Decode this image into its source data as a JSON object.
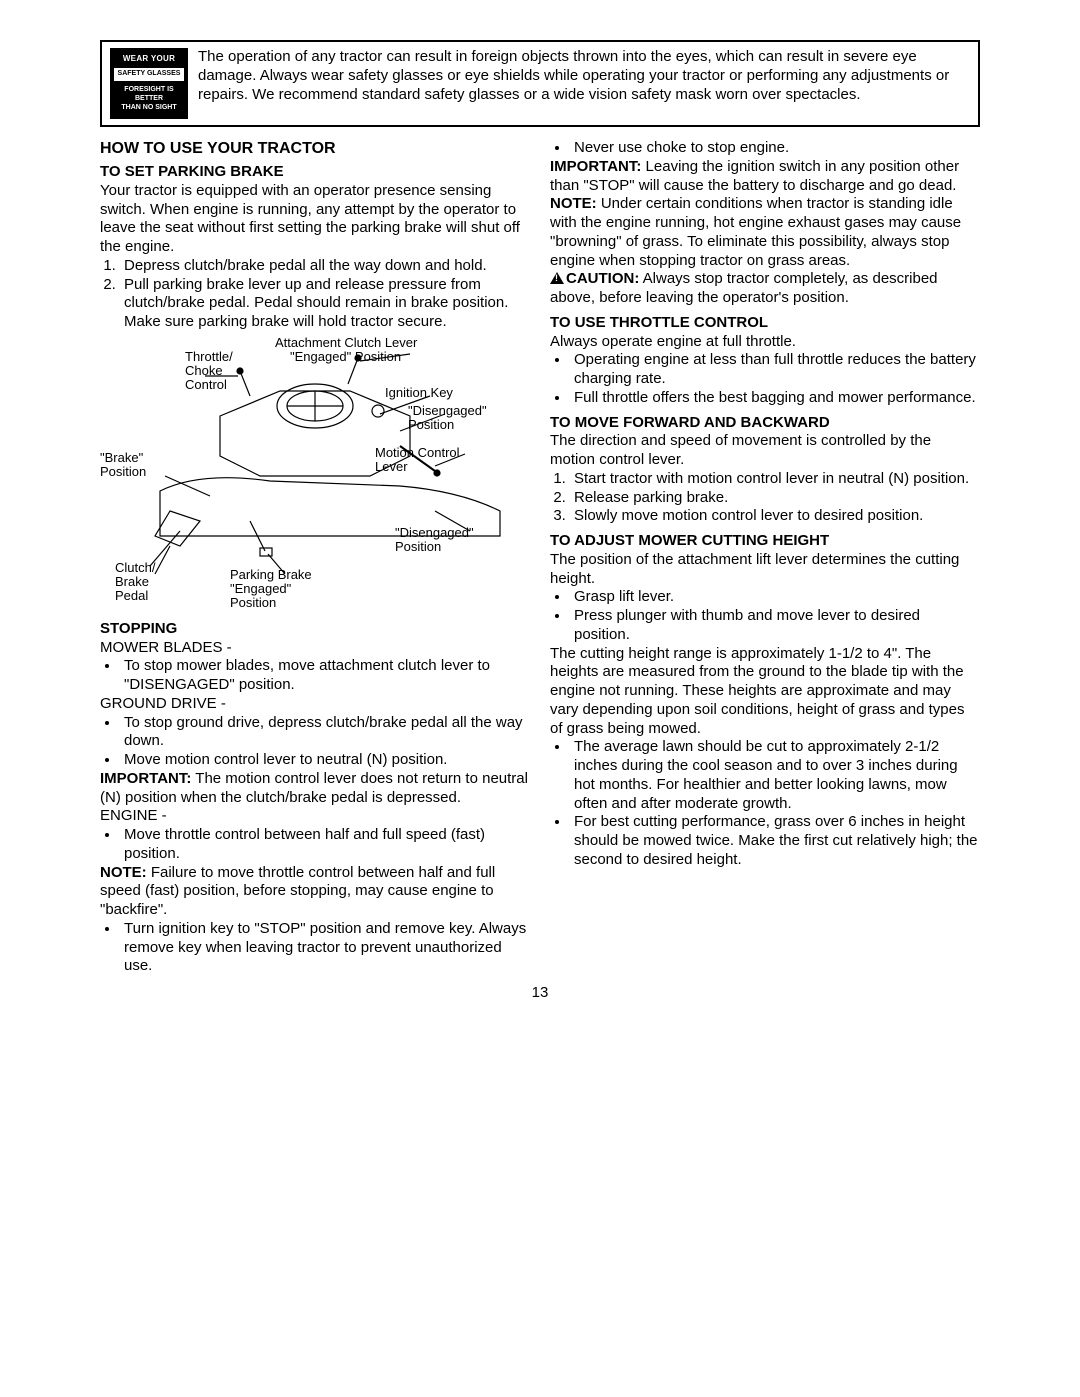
{
  "warning": {
    "badge": {
      "line1": "WEAR YOUR",
      "line2": "SAFETY GLASSES",
      "line3": "FORESIGHT IS BETTER",
      "line4": "THAN NO SIGHT"
    },
    "text": "The operation of any tractor can result in foreign objects thrown into the eyes, which can result in severe eye damage. Always wear safety glasses or eye shields while operating your tractor or performing any adjustments or repairs. We recommend standard safety glasses or a wide vision safety mask worn over spectacles."
  },
  "left": {
    "h1": "HOW TO USE YOUR TRACTOR",
    "h2a": "TO SET PARKING BRAKE",
    "p1": "Your tractor is equipped with an operator presence sensing switch. When engine is running, any attempt by the operator to leave the seat without first setting the parking brake will shut off the engine.",
    "ol1": [
      "Depress clutch/brake pedal all the way down and hold.",
      "Pull parking brake lever up and release pressure from clutch/brake pedal. Pedal should remain in brake position. Make sure parking brake will hold tractor secure."
    ],
    "diag": {
      "attach": "Attachment Clutch Lever",
      "engaged1": "\"Engaged\" Position",
      "throttle": "Throttle/\nChoke\nControl",
      "ignition": "Ignition Key",
      "diseng1": "\"Disengaged\"\nPosition",
      "brakepos": "\"Brake\"\nPosition",
      "motion": "Motion Control\nLever",
      "diseng2": "\"Disengaged\"\nPosition",
      "clutch": "Clutch/\nBrake\nPedal",
      "parking": "Parking Brake\n\"Engaged\"\nPosition"
    },
    "h2b": "STOPPING",
    "sub1": "MOWER BLADES -",
    "ul1": [
      "To stop mower blades, move attachment clutch lever to \"DISENGAGED\" position."
    ],
    "sub2": "GROUND DRIVE -",
    "ul2": [
      "To stop ground drive, depress clutch/brake pedal all the way down.",
      "Move motion control lever to neutral (N) position."
    ],
    "imp1a": "IMPORTANT:",
    "imp1b": " The motion control lever does not return to neutral (N) position when the clutch/brake pedal is depressed.",
    "sub3": "ENGINE -",
    "ul3": [
      "Move throttle control between half and full speed (fast) position."
    ],
    "note1a": "NOTE:",
    "note1b": " Failure to move throttle control between half and full speed (fast) position, before stopping, may cause engine to \"backfire\".",
    "ul4": [
      "Turn ignition key to \"STOP\" position and remove key. Always remove key when leaving tractor to prevent unauthorized use."
    ]
  },
  "right": {
    "ul0": [
      "Never use choke to stop engine."
    ],
    "imp1a": "IMPORTANT:",
    "imp1b": " Leaving the ignition switch in any position other than \"STOP\" will cause the battery to discharge and go dead.",
    "note1a": "NOTE:",
    "note1b": " Under certain conditions when tractor is standing idle with the engine running, hot engine exhaust gases may cause \"browning\" of grass. To eliminate this possibility, always stop engine when stopping tractor on grass areas.",
    "caut1a": "CAUTION:",
    "caut1b": " Always stop tractor completely, as described above, before leaving the operator's position.",
    "h2a": "TO USE THROTTLE CONTROL",
    "p2a": "Always operate engine at full throttle.",
    "ul2a": [
      "Operating engine at less than full throttle reduces the battery charging rate.",
      "Full throttle offers the best bagging and mower performance."
    ],
    "h2b": "TO MOVE FORWARD AND BACKWARD",
    "p2b": "The direction and speed of movement is controlled by the motion control lever.",
    "ol2b": [
      "Start tractor with motion control lever in neutral (N) position.",
      "Release parking brake.",
      "Slowly move motion control lever to desired position."
    ],
    "h2c": "TO ADJUST MOWER CUTTING HEIGHT",
    "p2c": "The position of the attachment lift lever determines the cutting height.",
    "ul2c": [
      "Grasp lift lever.",
      "Press plunger with thumb and move lever to desired position."
    ],
    "p2d": "The cutting height range is approximately 1-1/2 to 4\". The heights are measured from the ground to the blade tip with the engine not running. These heights are approximate and may vary depending upon soil conditions, height of grass and types of grass being mowed.",
    "ul2d": [
      "The average lawn should be cut to approximately 2-1/2 inches during the cool season and to over 3 inches during hot months. For healthier and better looking lawns, mow often and after moderate growth.",
      "For best cutting performance, grass over 6 inches in height should be mowed twice. Make the first cut relatively high; the second to desired height."
    ]
  },
  "pagenum": "13"
}
